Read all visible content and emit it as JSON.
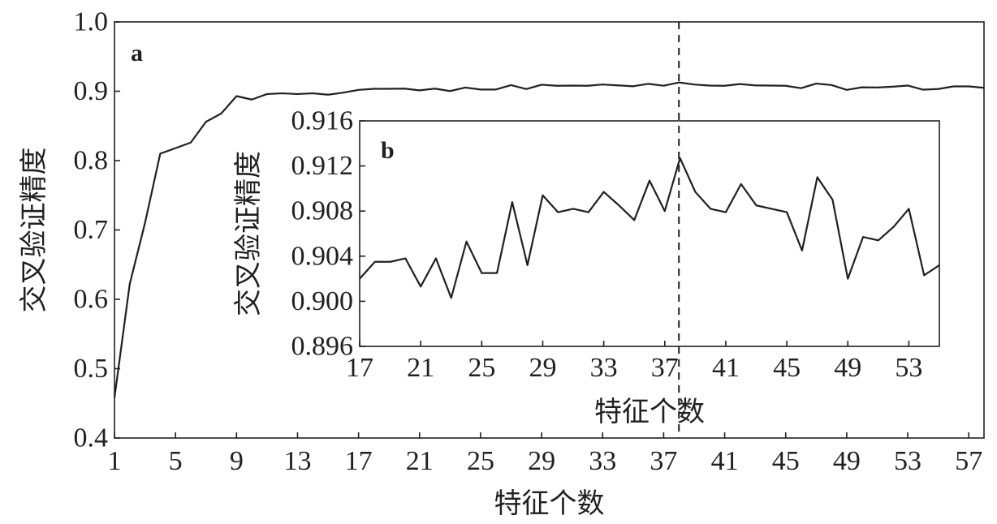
{
  "colors": {
    "line": "#231f20",
    "background": "#ffffff"
  },
  "chart_data": [
    {
      "type": "line",
      "panel_label": "a",
      "xlabel": "特征个数",
      "ylabel": "交叉验证精度",
      "xlim": [
        1,
        58
      ],
      "ylim": [
        0.4,
        1.0
      ],
      "xticks": [
        "1",
        "5",
        "9",
        "13",
        "17",
        "21",
        "25",
        "29",
        "33",
        "37",
        "41",
        "45",
        "49",
        "53",
        "57"
      ],
      "yticks": [
        "0.4",
        "0.5",
        "0.6",
        "0.7",
        "0.8",
        "0.9",
        "1.0"
      ],
      "grid": false,
      "series": [
        {
          "x": [
            1,
            2,
            3,
            4,
            5,
            6,
            7,
            8,
            9,
            10,
            11,
            12,
            13,
            14,
            15,
            16,
            17,
            18,
            19,
            20,
            21,
            22,
            23,
            24,
            25,
            26,
            27,
            28,
            29,
            30,
            31,
            32,
            33,
            34,
            35,
            36,
            37,
            38,
            39,
            40,
            41,
            42,
            43,
            44,
            45,
            46,
            47,
            48,
            49,
            50,
            51,
            52,
            53,
            54,
            55,
            56,
            57,
            58
          ],
          "values": [
            0.458,
            0.622,
            0.71,
            0.81,
            0.818,
            0.826,
            0.856,
            0.868,
            0.893,
            0.888,
            0.896,
            0.897,
            0.896,
            0.897,
            0.895,
            0.898,
            0.902,
            0.9035,
            0.9035,
            0.9038,
            0.9013,
            0.9038,
            0.9003,
            0.9053,
            0.9025,
            0.9025,
            0.9088,
            0.9032,
            0.9094,
            0.9079,
            0.9082,
            0.9079,
            0.9097,
            0.9085,
            0.9072,
            0.9107,
            0.908,
            0.9127,
            0.9097,
            0.9082,
            0.9079,
            0.9104,
            0.9085,
            0.9082,
            0.9079,
            0.9045,
            0.911,
            0.909,
            0.902,
            0.9057,
            0.9054,
            0.9066,
            0.9082,
            0.9023,
            0.9032,
            0.907,
            0.907,
            0.905
          ]
        }
      ],
      "reference_line": {
        "orientation": "vertical",
        "x": 38,
        "style": "dashed"
      }
    },
    {
      "type": "line",
      "panel_label": "b",
      "inset_of": "a",
      "xlabel": "特征个数",
      "ylabel": "交叉验证精度",
      "xlim": [
        17,
        55
      ],
      "ylim": [
        0.896,
        0.916
      ],
      "xticks": [
        "17",
        "21",
        "25",
        "29",
        "33",
        "37",
        "41",
        "45",
        "49",
        "53"
      ],
      "yticks": [
        "0.896",
        "0.900",
        "0.904",
        "0.908",
        "0.912",
        "0.916"
      ],
      "grid": false,
      "series": [
        {
          "x": [
            17,
            18,
            19,
            20,
            21,
            22,
            23,
            24,
            25,
            26,
            27,
            28,
            29,
            30,
            31,
            32,
            33,
            34,
            35,
            36,
            37,
            38,
            39,
            40,
            41,
            42,
            43,
            44,
            45,
            46,
            47,
            48,
            49,
            50,
            51,
            52,
            53,
            54,
            55
          ],
          "values": [
            0.902,
            0.9035,
            0.9035,
            0.9038,
            0.9013,
            0.9038,
            0.9003,
            0.9053,
            0.9025,
            0.9025,
            0.9088,
            0.9032,
            0.9094,
            0.9079,
            0.9082,
            0.9079,
            0.9097,
            0.9085,
            0.9072,
            0.9107,
            0.908,
            0.9127,
            0.9097,
            0.9082,
            0.9079,
            0.9104,
            0.9085,
            0.9082,
            0.9079,
            0.9045,
            0.911,
            0.909,
            0.902,
            0.9057,
            0.9054,
            0.9066,
            0.9082,
            0.9023,
            0.9032
          ]
        }
      ]
    }
  ]
}
